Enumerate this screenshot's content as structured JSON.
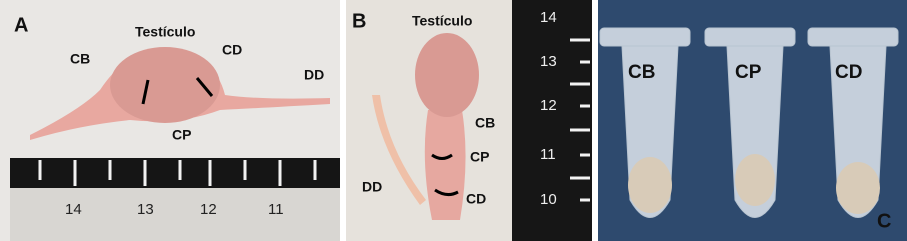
{
  "panels": [
    {
      "letter": "A",
      "labels": [
        "Testículo",
        "CB",
        "CD",
        "CP",
        "DD"
      ],
      "ruler": [
        14,
        13,
        12,
        11
      ]
    },
    {
      "letter": "B",
      "labels": [
        "Testículo",
        "CB",
        "CP",
        "DD",
        "CD"
      ],
      "ruler": [
        14,
        13,
        12,
        11,
        10
      ]
    },
    {
      "letter": "C",
      "labels": [
        "CB",
        "CP",
        "CD"
      ]
    }
  ]
}
